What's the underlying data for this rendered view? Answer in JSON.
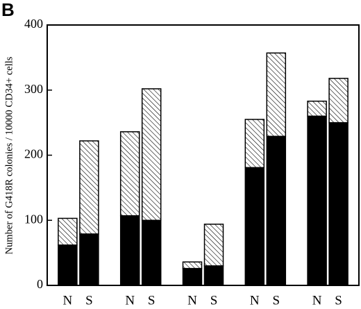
{
  "panel_label": "B",
  "chart_data": {
    "type": "stacked_bar",
    "ylabel": "Number of G418R colonies / 10000 CD34+ cells",
    "categories": [
      "N",
      "S",
      "N",
      "S",
      "N",
      "S",
      "N",
      "S",
      "N",
      "S"
    ],
    "series": [
      {
        "color": "#000000",
        "pattern": "solid",
        "values": [
          62,
          79,
          107,
          100,
          26,
          30,
          181,
          229,
          260,
          250
        ]
      },
      {
        "color": "#000000",
        "pattern": "hatch",
        "values": [
          41,
          143,
          129,
          202,
          10,
          64,
          74,
          128,
          23,
          68
        ]
      }
    ],
    "ylim": [
      0,
      400
    ],
    "yticks": [
      0,
      100,
      200,
      300,
      400
    ]
  }
}
